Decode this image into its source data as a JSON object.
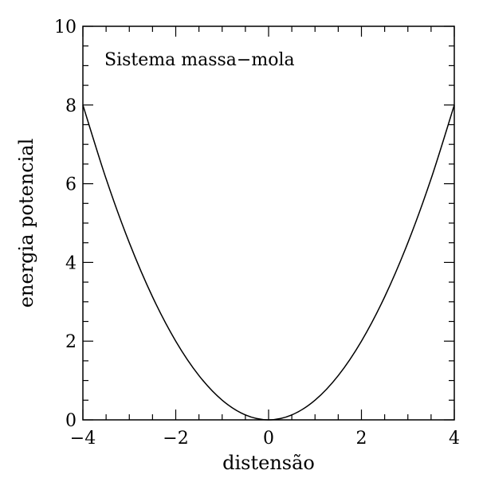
{
  "chart_data": {
    "type": "line",
    "title": "",
    "annotation": "Sistema massa−mola",
    "xlabel": "distensão",
    "ylabel": "energia potencial",
    "xlim": [
      -4,
      4
    ],
    "ylim": [
      0,
      10
    ],
    "xticks": [
      -4,
      -2,
      0,
      2,
      4
    ],
    "xtick_labels": [
      "−4",
      "−2",
      "0",
      "2",
      "4"
    ],
    "yticks": [
      0,
      2,
      4,
      6,
      8,
      10
    ],
    "ytick_labels": [
      "0",
      "2",
      "4",
      "6",
      "8",
      "10"
    ],
    "x_minor_step": 0.5,
    "y_minor_step": 0.5,
    "grid": false,
    "series": [
      {
        "x": [
          -4,
          -3.5,
          -3,
          -2.5,
          -2,
          -1.5,
          -1,
          -0.5,
          0,
          0.5,
          1,
          1.5,
          2,
          2.5,
          3,
          3.5,
          4
        ],
        "y": [
          8,
          6.125,
          4.5,
          3.125,
          2,
          1.125,
          0.5,
          0.125,
          0,
          0.125,
          0.5,
          1.125,
          2,
          3.125,
          4.5,
          6.125,
          8
        ]
      }
    ],
    "colors": {
      "line": "#000000",
      "axes": "#000000",
      "background": "#ffffff"
    }
  }
}
